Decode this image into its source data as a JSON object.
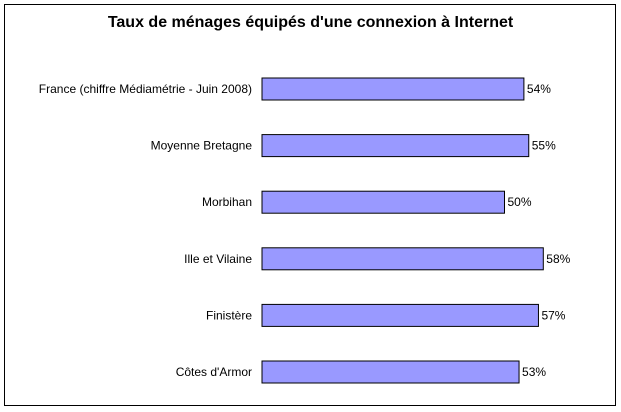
{
  "chart_data": {
    "type": "bar",
    "orientation": "horizontal",
    "title": "Taux de ménages équipés d'une connexion à Internet",
    "categories": [
      "France (chiffre Médiamétrie - Juin 2008)",
      "Moyenne Bretagne",
      "Morbihan",
      "Ille et Vilaine",
      "Finistère",
      "Côtes d'Armor"
    ],
    "values": [
      54,
      55,
      50,
      58,
      57,
      53
    ],
    "value_suffix": "%",
    "xlim": [
      0,
      100
    ],
    "grid": false,
    "legend": "none",
    "bar_color": "#9999ff",
    "bar_border_color": "#000000"
  }
}
